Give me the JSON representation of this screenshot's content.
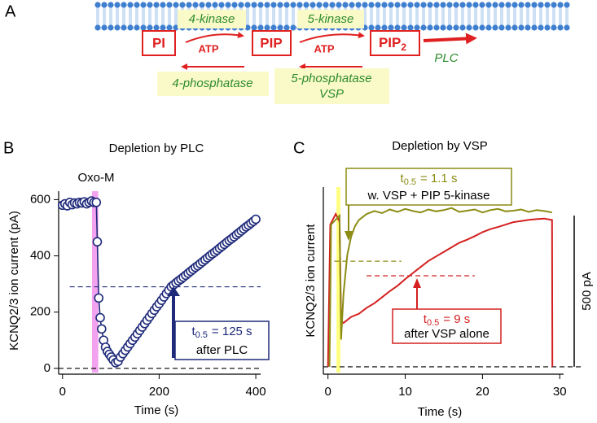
{
  "panel_labels": [
    "A",
    "B",
    "C"
  ],
  "diagram": {
    "lipids": {
      "pi": "PI",
      "pip": "PIP",
      "pip2": "PIP",
      "pip2_sub": "2"
    },
    "kinase4": "4-kinase",
    "kinase5": "5-kinase",
    "atp": [
      "ATP",
      "ATP"
    ],
    "phosphatase4": "4-phosphatase",
    "phosphatase5": [
      "5-phosphatase",
      "VSP"
    ],
    "plc": "PLC"
  },
  "chart_data": [
    {
      "type": "scatter-line",
      "title": "Depletion by PLC",
      "x_label": "Time (s)",
      "y_label": "KCNQ2/3 ion current (pA)",
      "color": "#1f2a7a",
      "x": [
        0,
        5,
        10,
        15,
        20,
        25,
        30,
        35,
        40,
        45,
        50,
        55,
        60,
        65,
        70,
        72,
        75,
        78,
        81,
        85,
        89,
        93,
        97,
        101,
        105,
        110,
        115,
        120,
        125,
        130,
        135,
        140,
        145,
        150,
        155,
        160,
        165,
        170,
        175,
        180,
        185,
        190,
        195,
        200,
        205,
        210,
        215,
        220,
        225,
        230,
        235,
        240,
        245,
        250,
        255,
        260,
        265,
        270,
        275,
        280,
        285,
        290,
        295,
        300,
        305,
        310,
        315,
        320,
        325,
        330,
        335,
        340,
        345,
        350,
        355,
        360,
        365,
        370,
        375,
        380,
        385,
        390,
        395,
        400
      ],
      "values": [
        580,
        585,
        578,
        590,
        582,
        588,
        585,
        590,
        588,
        592,
        585,
        590,
        595,
        590,
        590,
        450,
        250,
        180,
        140,
        100,
        75,
        60,
        50,
        40,
        30,
        20,
        25,
        40,
        52,
        64,
        76,
        88,
        100,
        111,
        123,
        135,
        147,
        159,
        171,
        183,
        195,
        207,
        219,
        230,
        242,
        254,
        266,
        278,
        290,
        297,
        304,
        311,
        317,
        324,
        331,
        338,
        345,
        352,
        359,
        365,
        372,
        379,
        386,
        393,
        400,
        407,
        413,
        420,
        427,
        434,
        441,
        448,
        455,
        461,
        468,
        475,
        482,
        489,
        496,
        503,
        509,
        516,
        523,
        530
      ],
      "xlim": [
        -8,
        410
      ],
      "ylim": [
        -15,
        630
      ],
      "xticks": [
        0,
        200,
        400
      ],
      "yticks": [
        0,
        200,
        400,
        600
      ],
      "highlight": {
        "xlim": [
          61,
          74
        ],
        "color": "#f2a2ee",
        "label": "Oxo-M"
      },
      "hlines": [
        {
          "value": 290,
          "xlim": [
            15,
            410
          ],
          "color": "#1f2a7a"
        },
        {
          "value": 0,
          "xlim": [
            -8,
            410
          ],
          "color": "#000000"
        }
      ],
      "annotations": [
        {
          "t": "t",
          "sub": "0.5",
          "text": "= 125 s",
          "line2": "after PLC",
          "color": "#1f2a7a"
        }
      ]
    },
    {
      "type": "trace",
      "title": "Depletion by VSP",
      "x_label": "Time (s)",
      "y_label": "KCNQ2/3 ion current",
      "series": [
        {
          "color": "#d42020",
          "x": [
            0,
            0.3,
            1.0,
            1.5,
            1.7,
            2,
            3,
            4,
            5,
            6,
            7,
            8,
            9,
            10,
            11,
            12,
            13,
            14,
            15,
            16,
            17,
            18,
            19,
            20,
            21,
            22,
            23,
            24,
            25,
            26,
            27,
            28,
            29,
            29.05
          ],
          "values": [
            0,
            470,
            505,
            480,
            150,
            145,
            165,
            175,
            195,
            210,
            230,
            250,
            268,
            290,
            310,
            330,
            350,
            365,
            380,
            395,
            410,
            420,
            432,
            445,
            455,
            462,
            470,
            478,
            482,
            486,
            488,
            490,
            485,
            0
          ]
        },
        {
          "color": "#8c8c14",
          "x": [
            0.2,
            0.4,
            1.5,
            1.7,
            2,
            2.5,
            3,
            3.5,
            4,
            4.5,
            5,
            6,
            7,
            8,
            9,
            10,
            11,
            12,
            13,
            14,
            15,
            16,
            17,
            18,
            19,
            20,
            21,
            22,
            23,
            24,
            25,
            26,
            27,
            28,
            29
          ],
          "values": [
            0,
            470,
            500,
            90,
            240,
            370,
            430,
            465,
            485,
            495,
            505,
            515,
            508,
            520,
            512,
            522,
            515,
            510,
            520,
            514,
            518,
            525,
            512,
            516,
            520,
            510,
            518,
            522,
            514,
            516,
            520,
            512,
            518,
            515,
            510
          ]
        }
      ],
      "xlim": [
        -0.6,
        30.5
      ],
      "ylim": [
        -19,
        594
      ],
      "xticks": [
        0,
        10,
        20,
        30
      ],
      "highlight": {
        "xlim": [
          1.1,
          1.6
        ],
        "color": "#ffff80"
      },
      "hlines": [
        {
          "value": 0,
          "xlim": [
            -0.6,
            33
          ],
          "color": "#000000"
        },
        {
          "value": 349,
          "xlim": [
            0.8,
            9.5
          ],
          "color": "#8c8c14"
        },
        {
          "value": 301,
          "xlim": [
            5,
            19
          ],
          "color": "#d42020"
        }
      ],
      "scalebar": {
        "value": 500,
        "label": "500 pA"
      },
      "annotations": [
        {
          "t": "t",
          "sub": "0.5",
          "text": "= 1.1 s",
          "line2": "w. VSP + PIP 5-kinase",
          "color": "#8c8c14"
        },
        {
          "t": "t",
          "sub": "0.5",
          "text": "= 9 s",
          "line2": "after VSP alone",
          "color": "#d42020"
        }
      ]
    }
  ]
}
